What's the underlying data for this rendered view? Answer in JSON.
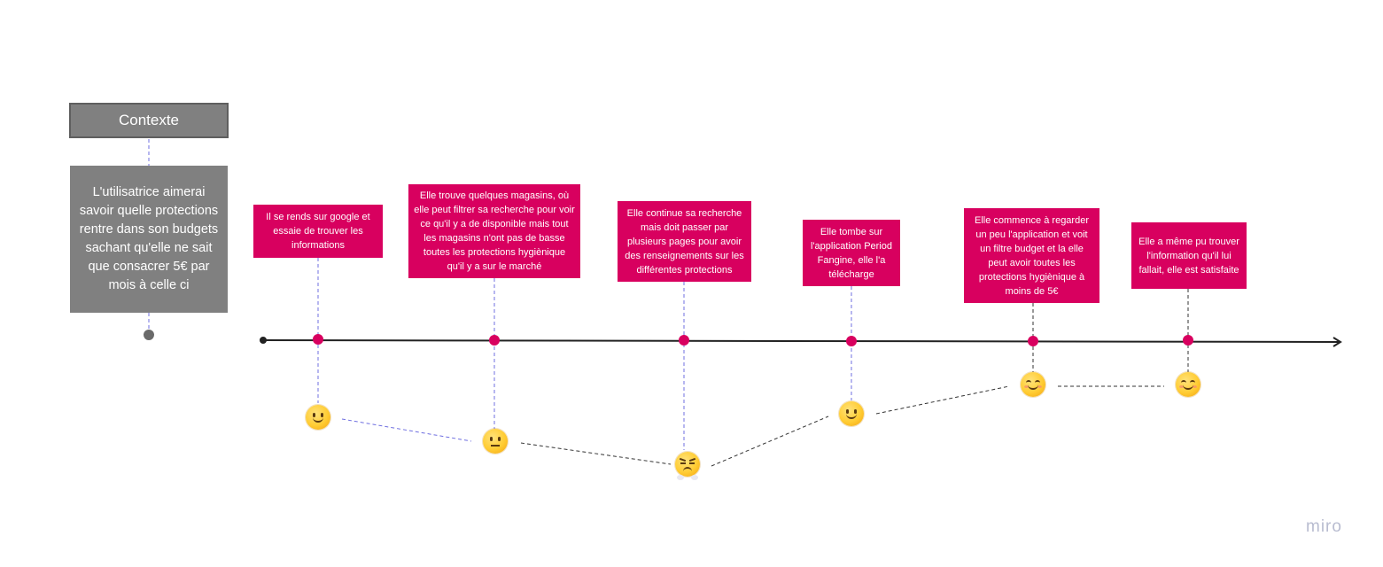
{
  "context": {
    "header": "Contexte",
    "body": "L'utilisatrice aimerai savoir quelle protections rentre dans son budgets sachant qu'elle ne sait que consacrer 5€ par mois à celle ci"
  },
  "steps": [
    {
      "text": "Il se rends sur google et essaie de trouver les informations",
      "emotion": "slightly-smiling-face-icon"
    },
    {
      "text": "Elle trouve quelques magasins, où elle peut filtrer sa recherche pour voir ce qu'il y a de disponible mais tout les magasins n'ont pas de basse toutes les protections hygiènique qu'il y a sur le marché",
      "emotion": "neutral-face-icon"
    },
    {
      "text": "Elle continue sa recherche mais doit passer par plusieurs pages pour avoir des renseignements sur les différentes protections",
      "emotion": "face-with-steam-icon"
    },
    {
      "text": "Elle tombe sur l'application Period Fangine, elle l'a télécharge",
      "emotion": "slightly-smiling-face-icon"
    },
    {
      "text": "Elle commence à regarder un peu l'application et voit un filtre budget et la elle peut avoir toutes les protections hygiènique à moins de 5€",
      "emotion": "smiling-face-with-smiling-eyes-icon"
    },
    {
      "text": "Elle a même pu trouver l'information qu'il lui fallait, elle est satisfaite",
      "emotion": "smiling-face-with-smiling-eyes-icon"
    }
  ],
  "colors": {
    "note": "#d8005f",
    "context": "#808080",
    "timeline": "#222222"
  },
  "brand": "miro"
}
